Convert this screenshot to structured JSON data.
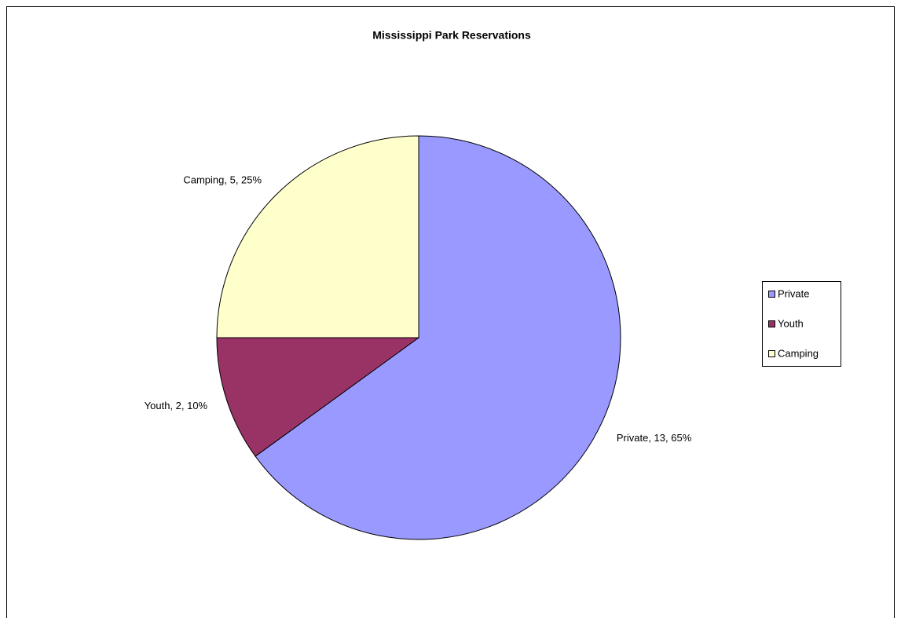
{
  "chart_data": {
    "type": "pie",
    "title": "Mississippi Park Reservations",
    "categories": [
      "Private",
      "Youth",
      "Camping"
    ],
    "values": [
      13,
      2,
      5
    ],
    "value_labels": [
      "Private, 13, 65%",
      "Youth, 2, 10%",
      "Camping, 5, 25%"
    ],
    "colors": [
      "#9999ff",
      "#993366",
      "#ffffcc"
    ],
    "legend": "right"
  }
}
